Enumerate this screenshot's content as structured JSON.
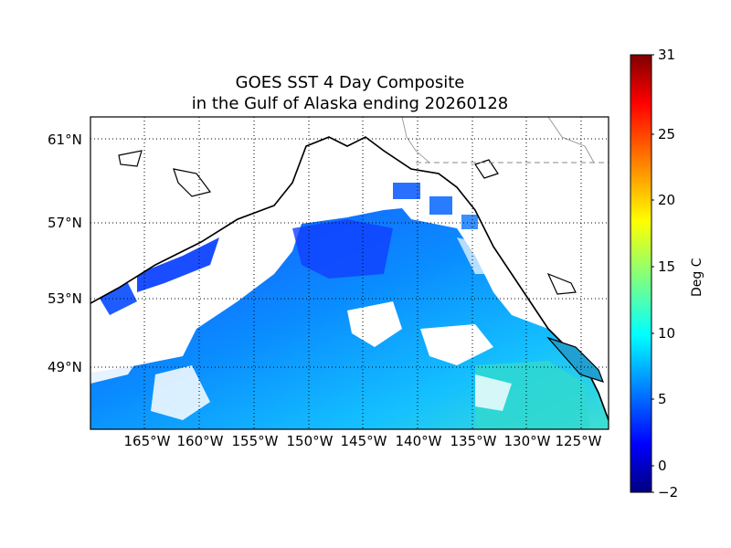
{
  "title": {
    "line1": "GOES SST 4 Day Composite",
    "line2": "in the Gulf of Alaska ending 20260128"
  },
  "map": {
    "lat_labels": [
      "61°N",
      "57°N",
      "53°N",
      "49°N"
    ],
    "lon_labels": [
      "165°W",
      "160°W",
      "155°W",
      "150°W",
      "145°W",
      "140°W",
      "135°W",
      "130°W",
      "125°W"
    ],
    "grid": "dotted",
    "land_color": "#ffffff",
    "coast_color": "#000000"
  },
  "colorbar": {
    "label": "Deg C",
    "min": -2,
    "max": 31,
    "ticks": [
      "31",
      "25",
      "20",
      "15",
      "10",
      "5",
      "0",
      "−2"
    ],
    "colormap": "jet"
  }
}
